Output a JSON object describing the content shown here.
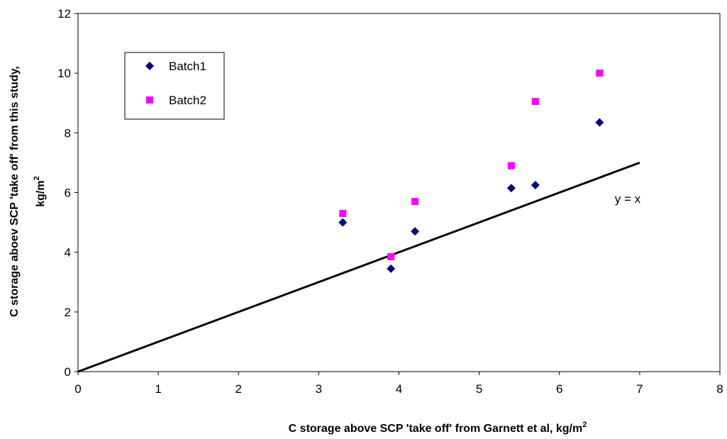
{
  "chart_data": {
    "type": "scatter",
    "xlim": [
      0,
      8
    ],
    "ylim": [
      0,
      12
    ],
    "x_ticks": [
      0,
      1,
      2,
      3,
      4,
      5,
      6,
      7,
      8
    ],
    "y_ticks": [
      0,
      2,
      4,
      6,
      8,
      10,
      12
    ],
    "xlabel": "C storage above SCP 'take off' from Garnett et al, kg/m",
    "xlabel_sup": "2",
    "ylabel_line1": "C storage aboev SCP 'take off' from this study,",
    "ylabel_line2": "kg/m",
    "ylabel_sup": "2",
    "grid": false,
    "legend_position": "top-left",
    "series": [
      {
        "name": "Batch1",
        "marker": "diamond",
        "color": "#00007f",
        "points": [
          [
            3.3,
            5.0
          ],
          [
            3.9,
            3.45
          ],
          [
            4.2,
            4.7
          ],
          [
            5.4,
            6.15
          ],
          [
            5.7,
            6.25
          ],
          [
            6.5,
            8.35
          ]
        ]
      },
      {
        "name": "Batch2",
        "marker": "square",
        "color": "#ff00ff",
        "points": [
          [
            3.3,
            5.3
          ],
          [
            3.9,
            3.85
          ],
          [
            4.2,
            5.7
          ],
          [
            5.4,
            6.9
          ],
          [
            5.7,
            9.05
          ],
          [
            6.5,
            10.0
          ]
        ]
      }
    ],
    "reference_line": {
      "label": "y = x",
      "label_at": [
        6.85,
        5.8
      ],
      "from": [
        0,
        0
      ],
      "to": [
        7,
        7
      ],
      "color": "#000000"
    }
  }
}
